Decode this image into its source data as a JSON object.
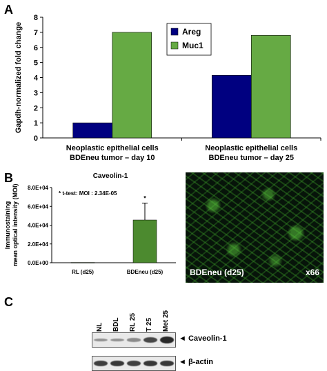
{
  "panels": {
    "a": "A",
    "b": "B",
    "c": "C"
  },
  "colors": {
    "areg": "#000080",
    "muc1": "#66aa44",
    "bdeneu_bar": "#4c8a2f",
    "error_bar": "#000000"
  },
  "chart_data": [
    {
      "type": "bar",
      "ylabel": "Gapdh-normalized fold change",
      "ylim": [
        0,
        8
      ],
      "yticks": [
        "0",
        "1",
        "2",
        "3",
        "4",
        "5",
        "6",
        "7",
        "8"
      ],
      "categories": [
        "Neoplastic epithelial cells\nBDEneu tumor – day 10",
        "Neoplastic epithelial cells\nBDEneu tumor – day 25"
      ],
      "category_lines": [
        [
          "Neoplastic epithelial cells",
          "BDEneu tumor – day 10"
        ],
        [
          "Neoplastic epithelial cells",
          "BDEneu tumor – day 25"
        ]
      ],
      "series": [
        {
          "name": "Areg",
          "values": [
            1.0,
            4.15
          ]
        },
        {
          "name": "Muc1",
          "values": [
            7.0,
            6.8
          ]
        }
      ],
      "legend_position": "top-right",
      "grid": false
    },
    {
      "type": "bar",
      "title": "Caveolin-1",
      "ylabel_lines": [
        "Immunostaining",
        "mean optical intensity (MOI)"
      ],
      "ylim": [
        0,
        80000
      ],
      "yticks": [
        "0.0E+00",
        "2.0E+04",
        "4.0E+04",
        "6.0E+04",
        "8.0E+04"
      ],
      "categories": [
        "RL (d25)",
        "BDEneu (d25)"
      ],
      "values": [
        300,
        45500
      ],
      "error": [
        0,
        18000
      ],
      "annotation": "*  t-test: MOI : 2.34E-05",
      "significance_marker": "*",
      "grid": false
    }
  ],
  "micrograph": {
    "label": "BDEneu (d25)",
    "magnification": "x66"
  },
  "western_blot": {
    "lanes": [
      "NL",
      "BDL",
      "RL 25",
      "T 25",
      "Met 25"
    ],
    "rows": [
      {
        "label": "◄ Caveolin-1",
        "intensities": [
          0.25,
          0.25,
          0.3,
          0.75,
          0.95
        ]
      },
      {
        "label": "◄ β-actin",
        "intensities": [
          0.8,
          0.85,
          0.8,
          0.85,
          0.85
        ]
      }
    ]
  }
}
